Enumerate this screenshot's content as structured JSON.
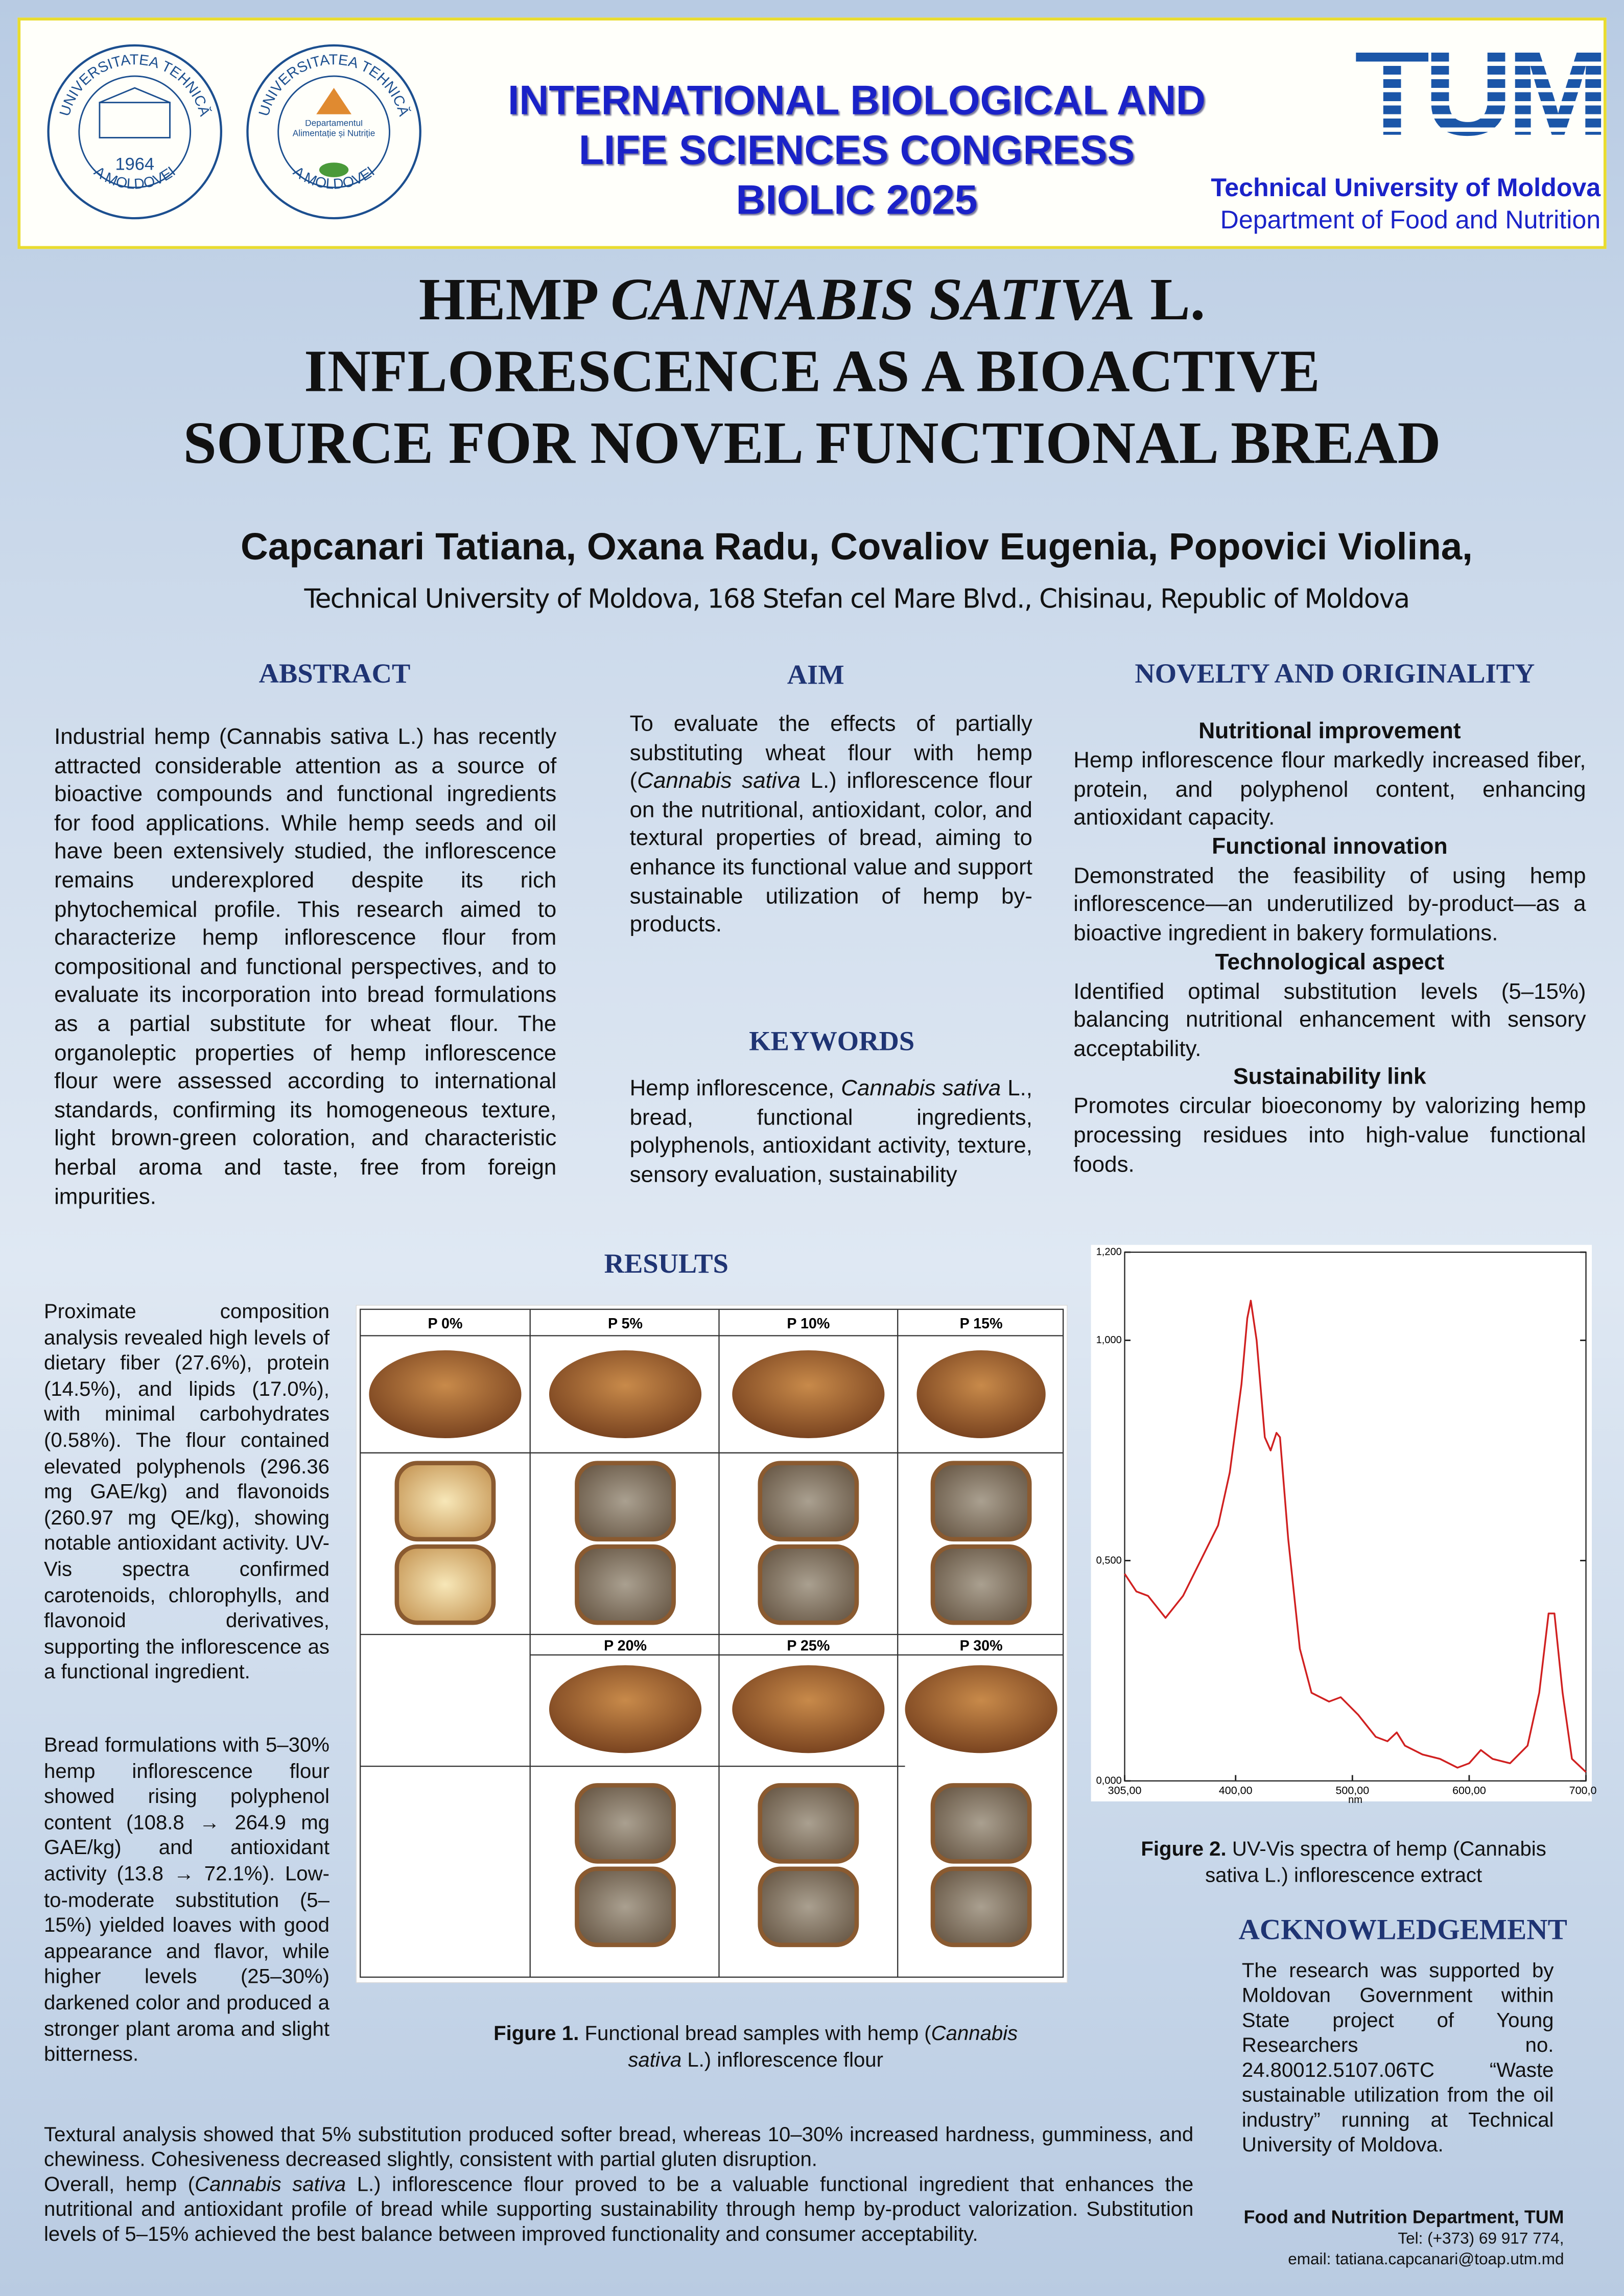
{
  "header": {
    "logo1": {
      "top": "UNIVERSITATEA TEHNICĂ",
      "bottom": "A MOLDOVEI",
      "year": "1964"
    },
    "logo2": {
      "top": "UNIVERSITATEA TEHNICĂ",
      "bottom": "A MOLDOVEI",
      "inner": "Departamentul Alimentație și Nutriție"
    },
    "congress": [
      "INTERNATIONAL BIOLOGICAL AND",
      "LIFE SCIENCES CONGRESS",
      "BIOLIC 2025"
    ],
    "logo3": "TUM",
    "university": "Technical University of Moldova",
    "department": "Department of Food and Nutrition"
  },
  "title": {
    "line1": {
      "a": "HEMP ",
      "b": "CANNABIS SATIVA",
      "c": " L."
    },
    "line2": "INFLORESCENCE AS A BIOACTIVE",
    "line3": "SOURCE FOR NOVEL FUNCTIONAL BREAD"
  },
  "authors": "Capcanari Tatiana, Oxana Radu, Covaliov Eugenia, Popovici Violina,",
  "affiliation": "Technical University of Moldova, 168 Stefan cel Mare Blvd., Chisinau, Republic of Moldova",
  "abstract": {
    "heading": "ABSTRACT",
    "text": "Industrial hemp (Cannabis sativa L.) has recently attracted considerable attention as a source of bioactive compounds and functional ingredients for food applications. While hemp seeds and oil have been extensively studied, the inflorescence remains underexplored despite its rich phytochemical profile. This research aimed to characterize hemp inflorescence flour from compositional and functional perspectives, and to evaluate its incorporation into bread formulations as a partial substitute for wheat flour. The organoleptic properties of hemp inflorescence flour were assessed according to international standards, confirming its homogeneous texture, light brown-green coloration, and characteristic herbal aroma and taste, free from foreign impurities."
  },
  "aim": {
    "heading": "AIM",
    "a": "To evaluate the effects of partially substituting wheat flour with hemp (",
    "b": "Cannabis sativa",
    "c": " L.) inflorescence flour on the nutritional, antioxidant, color, and textural properties of bread, aiming to enhance its functional value and support sustainable utilization of hemp by-products."
  },
  "keywords": {
    "heading": "KEYWORDS",
    "a": "Hemp inflorescence, ",
    "b": "Cannabis sativa",
    "c": " L., bread, functional ingredients, polyphenols, antioxidant activity, texture, sensory evaluation, sustainability"
  },
  "novelty": {
    "heading": "NOVELTY AND ORIGINALITY",
    "items": [
      {
        "heading": "Nutritional improvement",
        "text": "Hemp inflorescence flour markedly increased fiber, protein, and polyphenol content, enhancing antioxidant capacity."
      },
      {
        "heading": "Functional innovation",
        "text": "Demonstrated the feasibility of using hemp inflorescence—an underutilized by-product—as a bioactive ingredient in bakery formulations."
      },
      {
        "heading": "Technological aspect",
        "text": "Identified optimal substitution levels (5–15%) balancing nutritional enhancement with sensory acceptability."
      },
      {
        "heading": "Sustainability link",
        "text": "Promotes circular bioeconomy by valorizing hemp processing residues into high-value functional foods."
      }
    ]
  },
  "results": {
    "heading": "RESULTS",
    "p1": "Proximate composition analysis revealed high levels of dietary fiber (27.6%), protein (14.5%), and lipids (17.0%), with minimal carbohydrates (0.58%). The flour contained elevated polyphenols (296.36 mg GAE/kg) and flavonoids (260.97 mg QE/kg), showing notable antioxidant activity. UV-Vis spectra confirmed carotenoids, chlorophylls, and flavonoid derivatives, supporting the inflorescence as a functional ingredient.",
    "p2": "Bread formulations with 5–30% hemp inflorescence flour showed rising polyphenol content (108.8 → 264.9 mg GAE/kg) and antioxidant activity (13.8 → 72.1%). Low-to-moderate substitution (5–15%) yielded loaves with good appearance and flavor, while higher levels (25–30%) darkened color and produced a stronger plant aroma and slight bitterness."
  },
  "figure1": {
    "samples": [
      "P 0%",
      "P 5%",
      "P 10%",
      "P 15%",
      "P 20%",
      "P 25%",
      "P 30%"
    ],
    "caption": {
      "a": "Figure 1.",
      "b": " Functional bread samples with hemp (",
      "c": "Cannabis sativa",
      "d": " L.) inflorescence flour"
    }
  },
  "figure2": {
    "caption": {
      "a": "Figure 2.",
      "b": " UV-Vis spectra of hemp (Cannabis sativa L.) inflorescence extract"
    }
  },
  "chart_data": {
    "type": "line",
    "x_label": "nm",
    "color": "#d02020",
    "x": [
      305,
      315,
      325,
      340,
      355,
      370,
      385,
      395,
      405,
      410,
      413,
      418,
      425,
      430,
      435,
      438,
      445,
      455,
      465,
      480,
      490,
      505,
      520,
      530,
      538,
      545,
      560,
      575,
      590,
      600,
      610,
      620,
      635,
      650,
      660,
      668,
      673,
      680,
      688,
      700
    ],
    "values": [
      0.47,
      0.43,
      0.42,
      0.37,
      0.42,
      0.5,
      0.58,
      0.7,
      0.9,
      1.05,
      1.09,
      1.0,
      0.78,
      0.75,
      0.79,
      0.78,
      0.55,
      0.3,
      0.2,
      0.18,
      0.19,
      0.15,
      0.1,
      0.09,
      0.11,
      0.08,
      0.06,
      0.05,
      0.03,
      0.04,
      0.07,
      0.05,
      0.04,
      0.08,
      0.2,
      0.38,
      0.38,
      0.2,
      0.05,
      0.02
    ],
    "xlim": [
      305,
      700
    ],
    "ylim": [
      0,
      1.2
    ],
    "xticks": [
      {
        "value": 305,
        "label": "305,00"
      },
      {
        "value": 400,
        "label": "400,00"
      },
      {
        "value": 500,
        "label": "500,00"
      },
      {
        "value": 600,
        "label": "600,00"
      },
      {
        "value": 700,
        "label": "700,00"
      }
    ],
    "yticks": [
      {
        "value": 0,
        "label": "0,000"
      },
      {
        "value": 0.5,
        "label": "0,500"
      },
      {
        "value": 1,
        "label": "1,000"
      },
      {
        "value": 1.2,
        "label": "1,200"
      }
    ]
  },
  "acknowledgement": {
    "heading": "ACKNOWLEDGEMENT",
    "text": "The research was supported by Moldovan Government within State project of Young Researchers no. 24.80012.5107.06TC “Waste sustainable utilization from the oil industry” running at Technical University of Moldova."
  },
  "discussion": {
    "p1": "Textural analysis showed that 5% substitution produced softer bread, whereas 10–30% increased hardness, gumminess, and chewiness. Cohesiveness decreased slightly, consistent with partial gluten disruption.",
    "p2a": "Overall, hemp (",
    "p2b": "Cannabis sativa",
    "p2c": " L.) inflorescence flour proved to be a valuable functional ingredient that enhances the nutritional and antioxidant profile of bread while supporting sustainability through hemp by-product valorization. Substitution levels of 5–15% achieved the best balance between improved functionality and consumer acceptability."
  },
  "contact": {
    "dept": "Food and Nutrition Department, TUM",
    "tel": "Tel: (+373) 69 917 774,",
    "email": "email: tatiana.capcanari@toap.utm.md"
  }
}
